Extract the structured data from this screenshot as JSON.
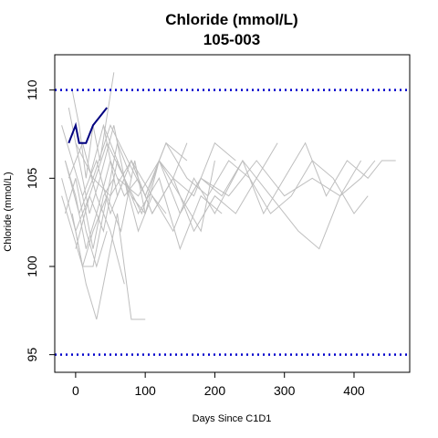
{
  "chart_data": {
    "type": "line",
    "title": "Chloride (mmol/L)",
    "subtitle": "105-003",
    "xlabel": "Days Since C1D1",
    "ylabel": "Chloride (mmol/L)",
    "xlim": [
      -30,
      480
    ],
    "ylim": [
      94,
      112
    ],
    "xticks": [
      0,
      100,
      200,
      300,
      400
    ],
    "yticks": [
      95,
      100,
      105,
      110
    ],
    "reference_lines": [
      {
        "y": 110,
        "style": "dotted",
        "color": "#0000cc"
      },
      {
        "y": 95,
        "style": "dotted",
        "color": "#0000cc"
      }
    ],
    "colors": {
      "background_series": "#bebebe",
      "highlight_series": "#000080",
      "reference_lines": "#0000cc"
    },
    "highlight_series": {
      "name": "105-003",
      "x": [
        -10,
        0,
        5,
        15,
        25,
        45
      ],
      "y": [
        107,
        108,
        107,
        107,
        108,
        109
      ]
    },
    "background_series": [
      {
        "x": [
          -15,
          0,
          15,
          30,
          50,
          70,
          90
        ],
        "y": [
          106,
          104,
          101,
          103,
          106,
          104,
          105
        ]
      },
      {
        "x": [
          -20,
          -5,
          10,
          25,
          40,
          60,
          80
        ],
        "y": [
          104,
          102,
          100,
          100,
          103,
          107,
          105
        ]
      },
      {
        "x": [
          -10,
          5,
          20,
          35,
          55,
          75
        ],
        "y": [
          109,
          106,
          103,
          105,
          108,
          104
        ]
      },
      {
        "x": [
          -5,
          10,
          25,
          45,
          65,
          85,
          100
        ],
        "y": [
          103,
          100,
          102,
          104,
          102,
          106,
          103
        ]
      },
      {
        "x": [
          -15,
          5,
          25,
          50,
          80,
          110,
          140,
          170,
          200,
          230
        ],
        "y": [
          106,
          103,
          105,
          104,
          106,
          103,
          105,
          104,
          107,
          106
        ]
      },
      {
        "x": [
          0,
          20,
          40,
          60,
          90,
          120,
          150,
          180,
          210
        ],
        "y": [
          101,
          104,
          102,
          106,
          103,
          105,
          101,
          104,
          103
        ]
      },
      {
        "x": [
          -10,
          10,
          30,
          50,
          70
        ],
        "y": [
          105,
          107,
          104,
          102,
          99
        ]
      },
      {
        "x": [
          0,
          15,
          30,
          45,
          60,
          80,
          100
        ],
        "y": [
          102,
          99,
          97,
          100,
          103,
          97,
          97
        ]
      },
      {
        "x": [
          -5,
          5,
          15,
          25,
          35,
          55
        ],
        "y": [
          110,
          108,
          105,
          108,
          106,
          111
        ]
      },
      {
        "x": [
          -20,
          0,
          20,
          45,
          70,
          95,
          120,
          150,
          180,
          200
        ],
        "y": [
          105,
          102,
          104,
          107,
          105,
          103,
          106,
          104,
          102,
          106
        ]
      },
      {
        "x": [
          40,
          60,
          80,
          110,
          140,
          170,
          200,
          230,
          260,
          290
        ],
        "y": [
          108,
          104,
          106,
          103,
          105,
          102,
          104,
          103,
          105,
          107
        ]
      },
      {
        "x": [
          60,
          90,
          120,
          150,
          180,
          210,
          240,
          270,
          300,
          330,
          360,
          390,
          420,
          440,
          460
        ],
        "y": [
          105,
          104,
          106,
          103,
          105,
          104,
          106,
          103,
          105,
          107,
          104,
          106,
          105,
          106,
          106
        ]
      },
      {
        "x": [
          80,
          110,
          140,
          170,
          200,
          240,
          280,
          320,
          350,
          380,
          410,
          430
        ],
        "y": [
          106,
          104,
          102,
          105,
          103,
          106,
          104,
          102,
          101,
          104,
          105,
          106
        ]
      },
      {
        "x": [
          100,
          130,
          160,
          190,
          220,
          250,
          280,
          310,
          340,
          370,
          400,
          420
        ],
        "y": [
          104,
          107,
          105,
          104,
          106,
          105,
          103,
          104,
          106,
          105,
          103,
          104
        ]
      },
      {
        "x": [
          150,
          180,
          220,
          260,
          300,
          340,
          380,
          410
        ],
        "y": [
          103,
          105,
          104,
          106,
          104,
          105,
          104,
          106
        ]
      },
      {
        "x": [
          -15,
          0,
          15,
          30,
          45
        ],
        "y": [
          103,
          105,
          102,
          100,
          102
        ]
      },
      {
        "x": [
          0,
          25,
          50,
          75,
          100,
          130,
          160
        ],
        "y": [
          107,
          105,
          108,
          106,
          104,
          107,
          106
        ]
      },
      {
        "x": [
          10,
          30,
          50,
          70,
          90,
          110,
          130
        ],
        "y": [
          104,
          106,
          103,
          105,
          102,
          104,
          103
        ]
      },
      {
        "x": [
          -20,
          -5,
          10,
          25,
          40,
          55
        ],
        "y": [
          108,
          106,
          104,
          101,
          104,
          105
        ]
      },
      {
        "x": [
          20,
          40,
          60,
          80,
          100,
          120,
          140,
          160
        ],
        "y": [
          105,
          108,
          106,
          104,
          103,
          106,
          105,
          107
        ]
      }
    ]
  }
}
